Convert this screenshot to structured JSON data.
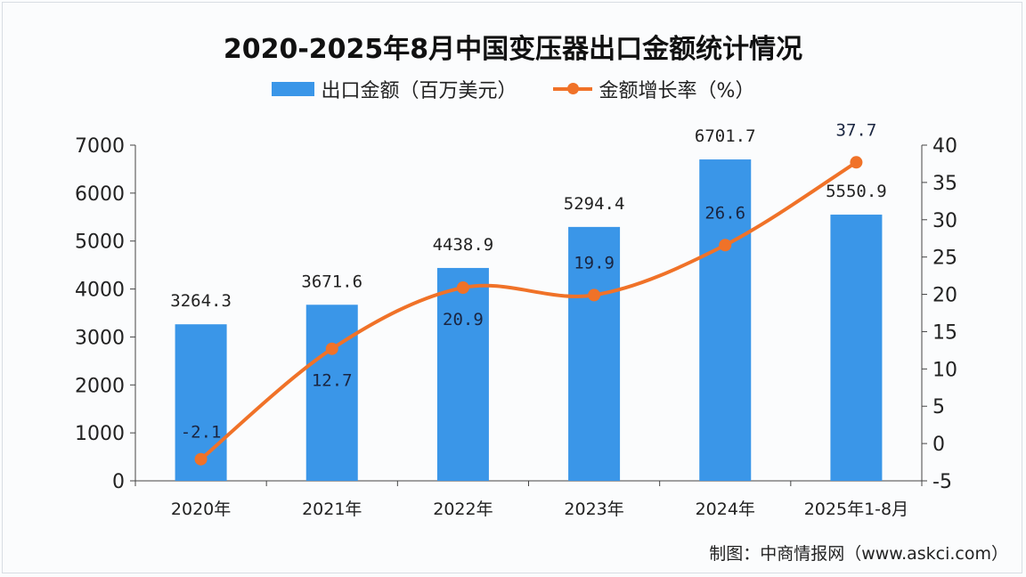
{
  "chart_data": {
    "type": "bar+line",
    "title": "2020-2025年8月中国变压器出口金额统计情况",
    "categories": [
      "2020年",
      "2021年",
      "2022年",
      "2023年",
      "2024年",
      "2025年1-8月"
    ],
    "series": [
      {
        "name": "出口金额（百万美元）",
        "type": "bar",
        "axis": "left",
        "values": [
          3264.3,
          3671.6,
          4438.9,
          5294.4,
          6701.7,
          5550.9
        ],
        "color": "#3a96e8"
      },
      {
        "name": "金额增长率（%）",
        "type": "line",
        "axis": "right",
        "values": [
          -2.1,
          12.7,
          20.9,
          19.9,
          26.6,
          37.7
        ],
        "color": "#f07228"
      }
    ],
    "left_axis": {
      "ylim": [
        0,
        7000
      ],
      "ticks": [
        0,
        1000,
        2000,
        3000,
        4000,
        5000,
        6000,
        7000
      ]
    },
    "right_axis": {
      "ylim": [
        -5,
        40
      ],
      "ticks": [
        -5,
        0,
        5,
        10,
        15,
        20,
        25,
        30,
        35,
        40
      ]
    },
    "grid": false,
    "legend": "top"
  },
  "source": "制图：中商情报网（www.askci.com）"
}
